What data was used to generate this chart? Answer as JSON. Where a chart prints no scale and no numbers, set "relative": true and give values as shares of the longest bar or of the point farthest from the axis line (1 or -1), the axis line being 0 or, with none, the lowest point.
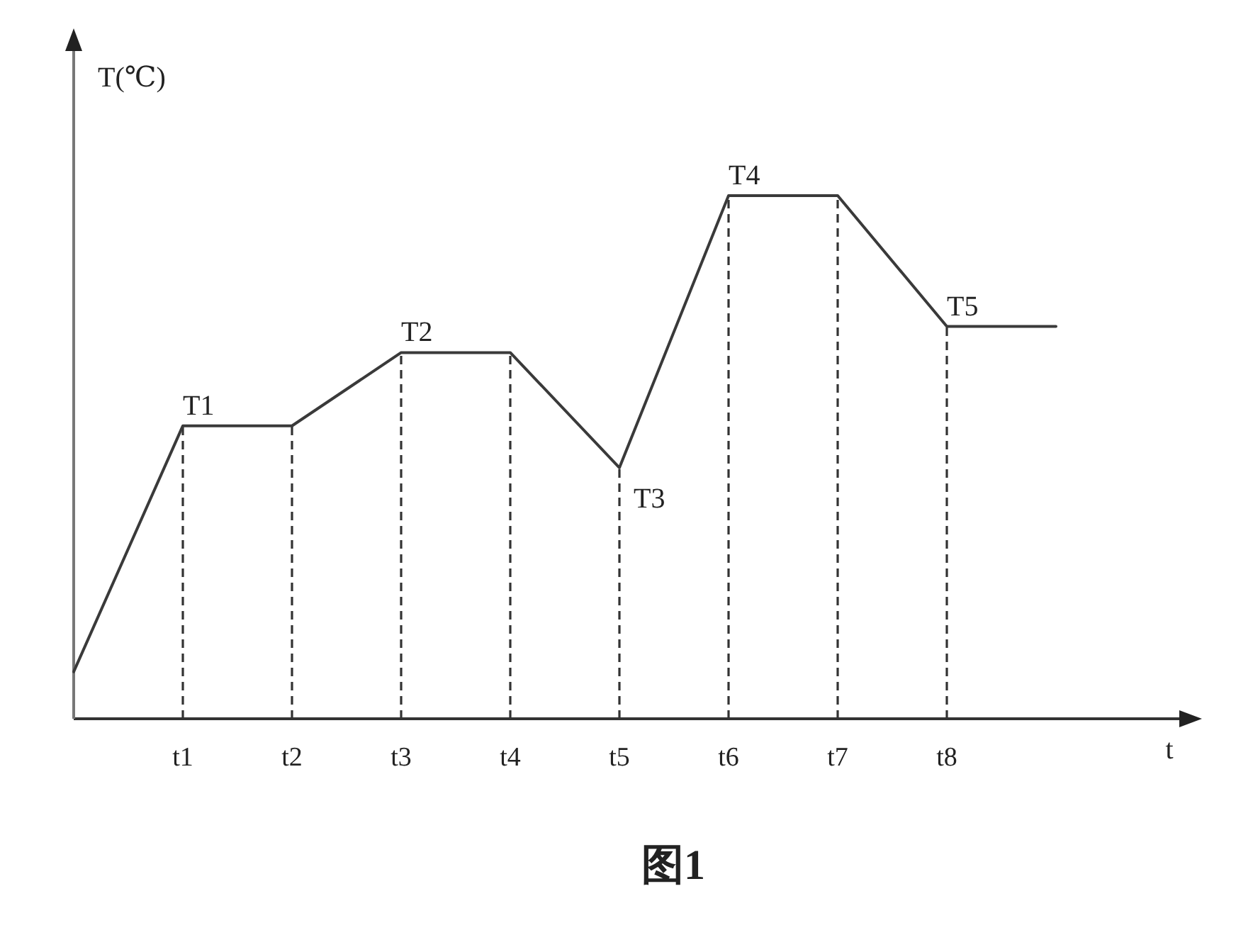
{
  "chart_data": {
    "type": "line",
    "xlabel": "t",
    "ylabel": "T(℃)",
    "relative": true,
    "tick_labels": "x",
    "line_style": "solid",
    "categories": [
      null,
      "t1",
      "t2",
      "t3",
      "t4",
      "t5",
      "t6",
      "t7",
      "t8",
      null
    ],
    "series": [
      {
        "color": "#3a3a3a",
        "values": [
          0.09,
          0.56,
          0.56,
          0.7,
          0.7,
          0.48,
          1,
          1,
          0.75,
          0.75
        ]
      }
    ],
    "ref_lines": [
      {
        "axis": "x",
        "value": "t1",
        "line_style": "dashed",
        "color": "#333333"
      },
      {
        "axis": "x",
        "value": "t2",
        "line_style": "dashed",
        "color": "#333333"
      },
      {
        "axis": "x",
        "value": "t3",
        "line_style": "dashed",
        "color": "#333333"
      },
      {
        "axis": "x",
        "value": "t4",
        "line_style": "dashed",
        "color": "#333333"
      },
      {
        "axis": "x",
        "value": "t5",
        "line_style": "dashed",
        "color": "#333333"
      },
      {
        "axis": "x",
        "value": "t6",
        "line_style": "dashed",
        "color": "#333333"
      },
      {
        "axis": "x",
        "value": "t7",
        "line_style": "dashed",
        "color": "#333333"
      },
      {
        "axis": "x",
        "value": "t8",
        "line_style": "dashed",
        "color": "#333333"
      }
    ],
    "annotations": [
      {
        "text": "T1",
        "x": "t1",
        "y": 0.56
      },
      {
        "text": "T2",
        "x": "t3",
        "y": 0.7
      },
      {
        "text": "T3",
        "x": "t5",
        "y": 0.48
      },
      {
        "text": "T4",
        "x": "t6",
        "y": 1
      },
      {
        "text": "T5",
        "x": "t8",
        "y": 0.75
      },
      "图1"
    ]
  }
}
